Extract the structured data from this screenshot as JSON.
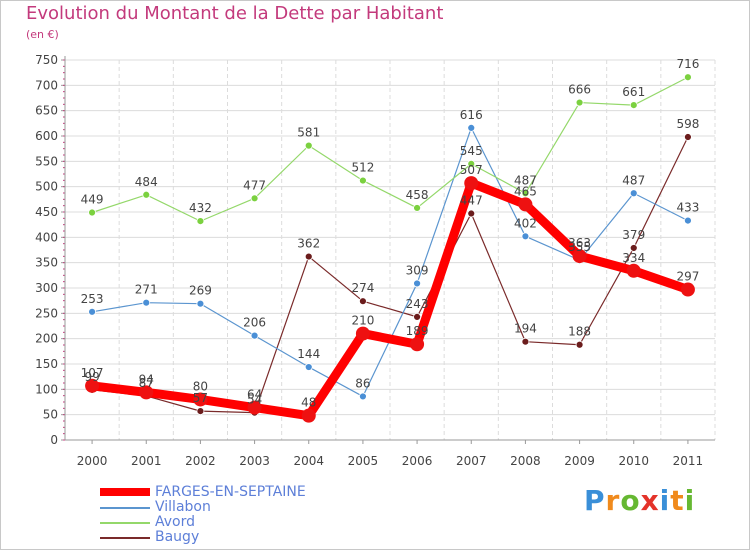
{
  "title": "Evolution du Montant de la Dette par Habitant",
  "unit": "(en €)",
  "brand": {
    "letters": [
      "P",
      "r",
      "o",
      "x",
      "i",
      "t",
      "i"
    ],
    "colors": [
      "#3a8fd8",
      "#f08a1c",
      "#66b832",
      "#e4332a",
      "#3a8fd8",
      "#f08a1c",
      "#66b832"
    ]
  },
  "chart_data": {
    "type": "line",
    "x": [
      "2000",
      "2001",
      "2002",
      "2003",
      "2004",
      "2005",
      "2006",
      "2007",
      "2008",
      "2009",
      "2010",
      "2011"
    ],
    "ylim": [
      0,
      750
    ],
    "yticks": [
      0,
      50,
      100,
      150,
      200,
      250,
      300,
      350,
      400,
      450,
      500,
      550,
      600,
      650,
      700,
      750
    ],
    "grid": true,
    "legend_position": "bottom-left",
    "series": [
      {
        "name": "FARGES-EN-SEPTAINE",
        "color": "#ff0000",
        "marker": "#ee1111",
        "width": 9,
        "values": [
          107,
          94,
          80,
          64,
          48,
          210,
          189,
          507,
          465,
          363,
          334,
          297
        ]
      },
      {
        "name": "Villabon",
        "color": "#5b95cf",
        "marker": "#4a8fd6",
        "width": 1.2,
        "values": [
          253,
          271,
          269,
          206,
          144,
          86,
          309,
          616,
          402,
          355,
          487,
          433
        ]
      },
      {
        "name": "Avord",
        "color": "#94d86a",
        "marker": "#7bd13f",
        "width": 1.2,
        "values": [
          449,
          484,
          432,
          477,
          581,
          512,
          458,
          545,
          487,
          666,
          661,
          716
        ]
      },
      {
        "name": "Baugy",
        "color": "#7a2a2a",
        "marker": "#6b1c1c",
        "width": 1.2,
        "values": [
          99,
          87,
          57,
          54,
          362,
          274,
          243,
          447,
          194,
          188,
          379,
          598
        ]
      }
    ],
    "data_labels": [
      {
        "series": 3,
        "labels": [
          "99",
          "87",
          "57",
          "54",
          "362",
          "274",
          "243",
          "447",
          "194",
          "188",
          "379",
          "598"
        ]
      },
      {
        "series": 1,
        "labels": [
          "253",
          "271",
          "269",
          "206",
          "144",
          "86",
          "309",
          "616",
          "402",
          "355",
          "487",
          "433"
        ]
      },
      {
        "series": 2,
        "labels": [
          "449",
          "484",
          "432",
          "477",
          "581",
          "512",
          "458",
          "545",
          "487",
          "666",
          "661",
          "716"
        ]
      },
      {
        "series": 0,
        "labels": [
          "107",
          "94",
          "80",
          "64",
          "48",
          "210",
          "189",
          "507",
          "465",
          "363",
          "334",
          "297"
        ]
      }
    ]
  }
}
